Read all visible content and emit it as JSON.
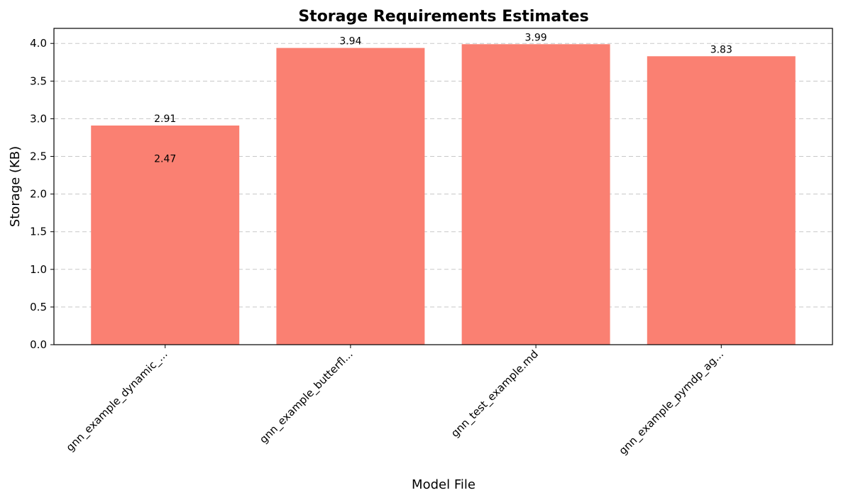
{
  "chart_data": {
    "type": "bar",
    "title": "Storage Requirements Estimates",
    "xlabel": "Model File",
    "ylabel": "Storage (KB)",
    "categories": [
      "gnn_example_dynamic_...",
      "gnn_example_butterfl...",
      "gnn_test_example.md",
      "gnn_example_pymdp_ag..."
    ],
    "values": [
      2.91,
      3.94,
      3.99,
      3.83
    ],
    "value_labels": [
      "2.91",
      "3.94",
      "3.99",
      "3.83"
    ],
    "annotations": [
      {
        "category_index": 0,
        "text": "2.47",
        "value": 2.47
      }
    ],
    "ylim": [
      0,
      4.2
    ],
    "yticks": [
      0.0,
      0.5,
      1.0,
      1.5,
      2.0,
      2.5,
      3.0,
      3.5,
      4.0
    ],
    "ytick_labels": [
      "0.0",
      "0.5",
      "1.0",
      "1.5",
      "2.0",
      "2.5",
      "3.0",
      "3.5",
      "4.0"
    ],
    "grid": "y-dashed",
    "bar_color": "#fa8072",
    "grid_color": "#c8c8c8"
  }
}
